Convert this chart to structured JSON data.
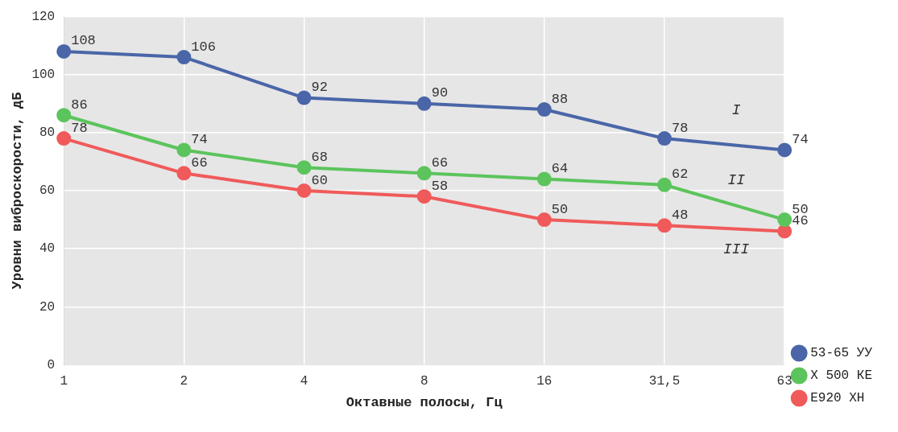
{
  "chart_data": {
    "type": "line",
    "xlabel": "Октавные полосы, Гц",
    "ylabel": "Уровни виброскорости, дБ",
    "categories": [
      "1",
      "2",
      "4",
      "8",
      "16",
      "31,5",
      "63"
    ],
    "series": [
      {
        "name": "53-65 УУ",
        "color": "#4a66a8",
        "values": [
          108,
          106,
          92,
          90,
          88,
          78,
          74
        ]
      },
      {
        "name": "Х 500 КЕ",
        "color": "#5cc45c",
        "values": [
          86,
          74,
          68,
          66,
          64,
          62,
          50
        ]
      },
      {
        "name": "Е920 ХН",
        "color": "#f05a5a",
        "values": [
          78,
          66,
          60,
          58,
          50,
          48,
          46
        ]
      }
    ],
    "ylim": [
      0,
      120
    ],
    "yticks": [
      0,
      20,
      40,
      60,
      80,
      100,
      120
    ],
    "grid": true,
    "legend": "bottom right",
    "marker": "circle",
    "line_style": "solid",
    "data_labels": true,
    "annotations": [
      "I",
      "II",
      "III"
    ]
  }
}
